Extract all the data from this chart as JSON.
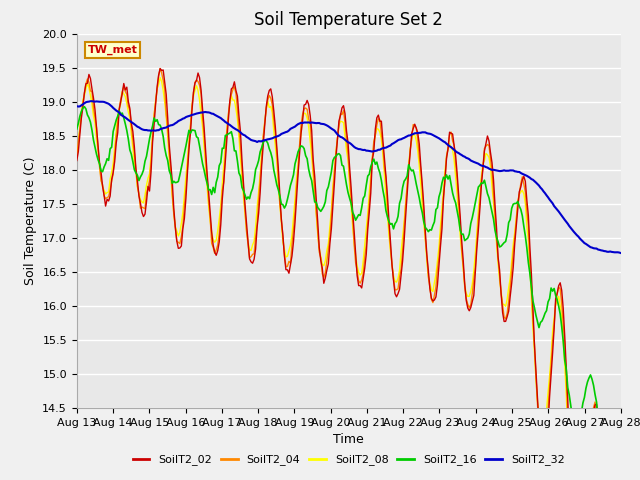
{
  "title": "Soil Temperature Set 2",
  "xlabel": "Time",
  "ylabel": "Soil Temperature (C)",
  "ylim": [
    14.5,
    20.0
  ],
  "series_colors": {
    "SoilT2_02": "#cc0000",
    "SoilT2_04": "#ff8800",
    "SoilT2_08": "#ffff00",
    "SoilT2_16": "#00cc00",
    "SoilT2_32": "#0000cc"
  },
  "legend_label": "TW_met",
  "xtick_labels": [
    "Aug 13",
    "Aug 14",
    "Aug 15",
    "Aug 16",
    "Aug 17",
    "Aug 18",
    "Aug 19",
    "Aug 20",
    "Aug 21",
    "Aug 22",
    "Aug 23",
    "Aug 24",
    "Aug 25",
    "Aug 26",
    "Aug 27",
    "Aug 28"
  ],
  "title_fontsize": 12,
  "axis_fontsize": 9,
  "tick_fontsize": 8
}
